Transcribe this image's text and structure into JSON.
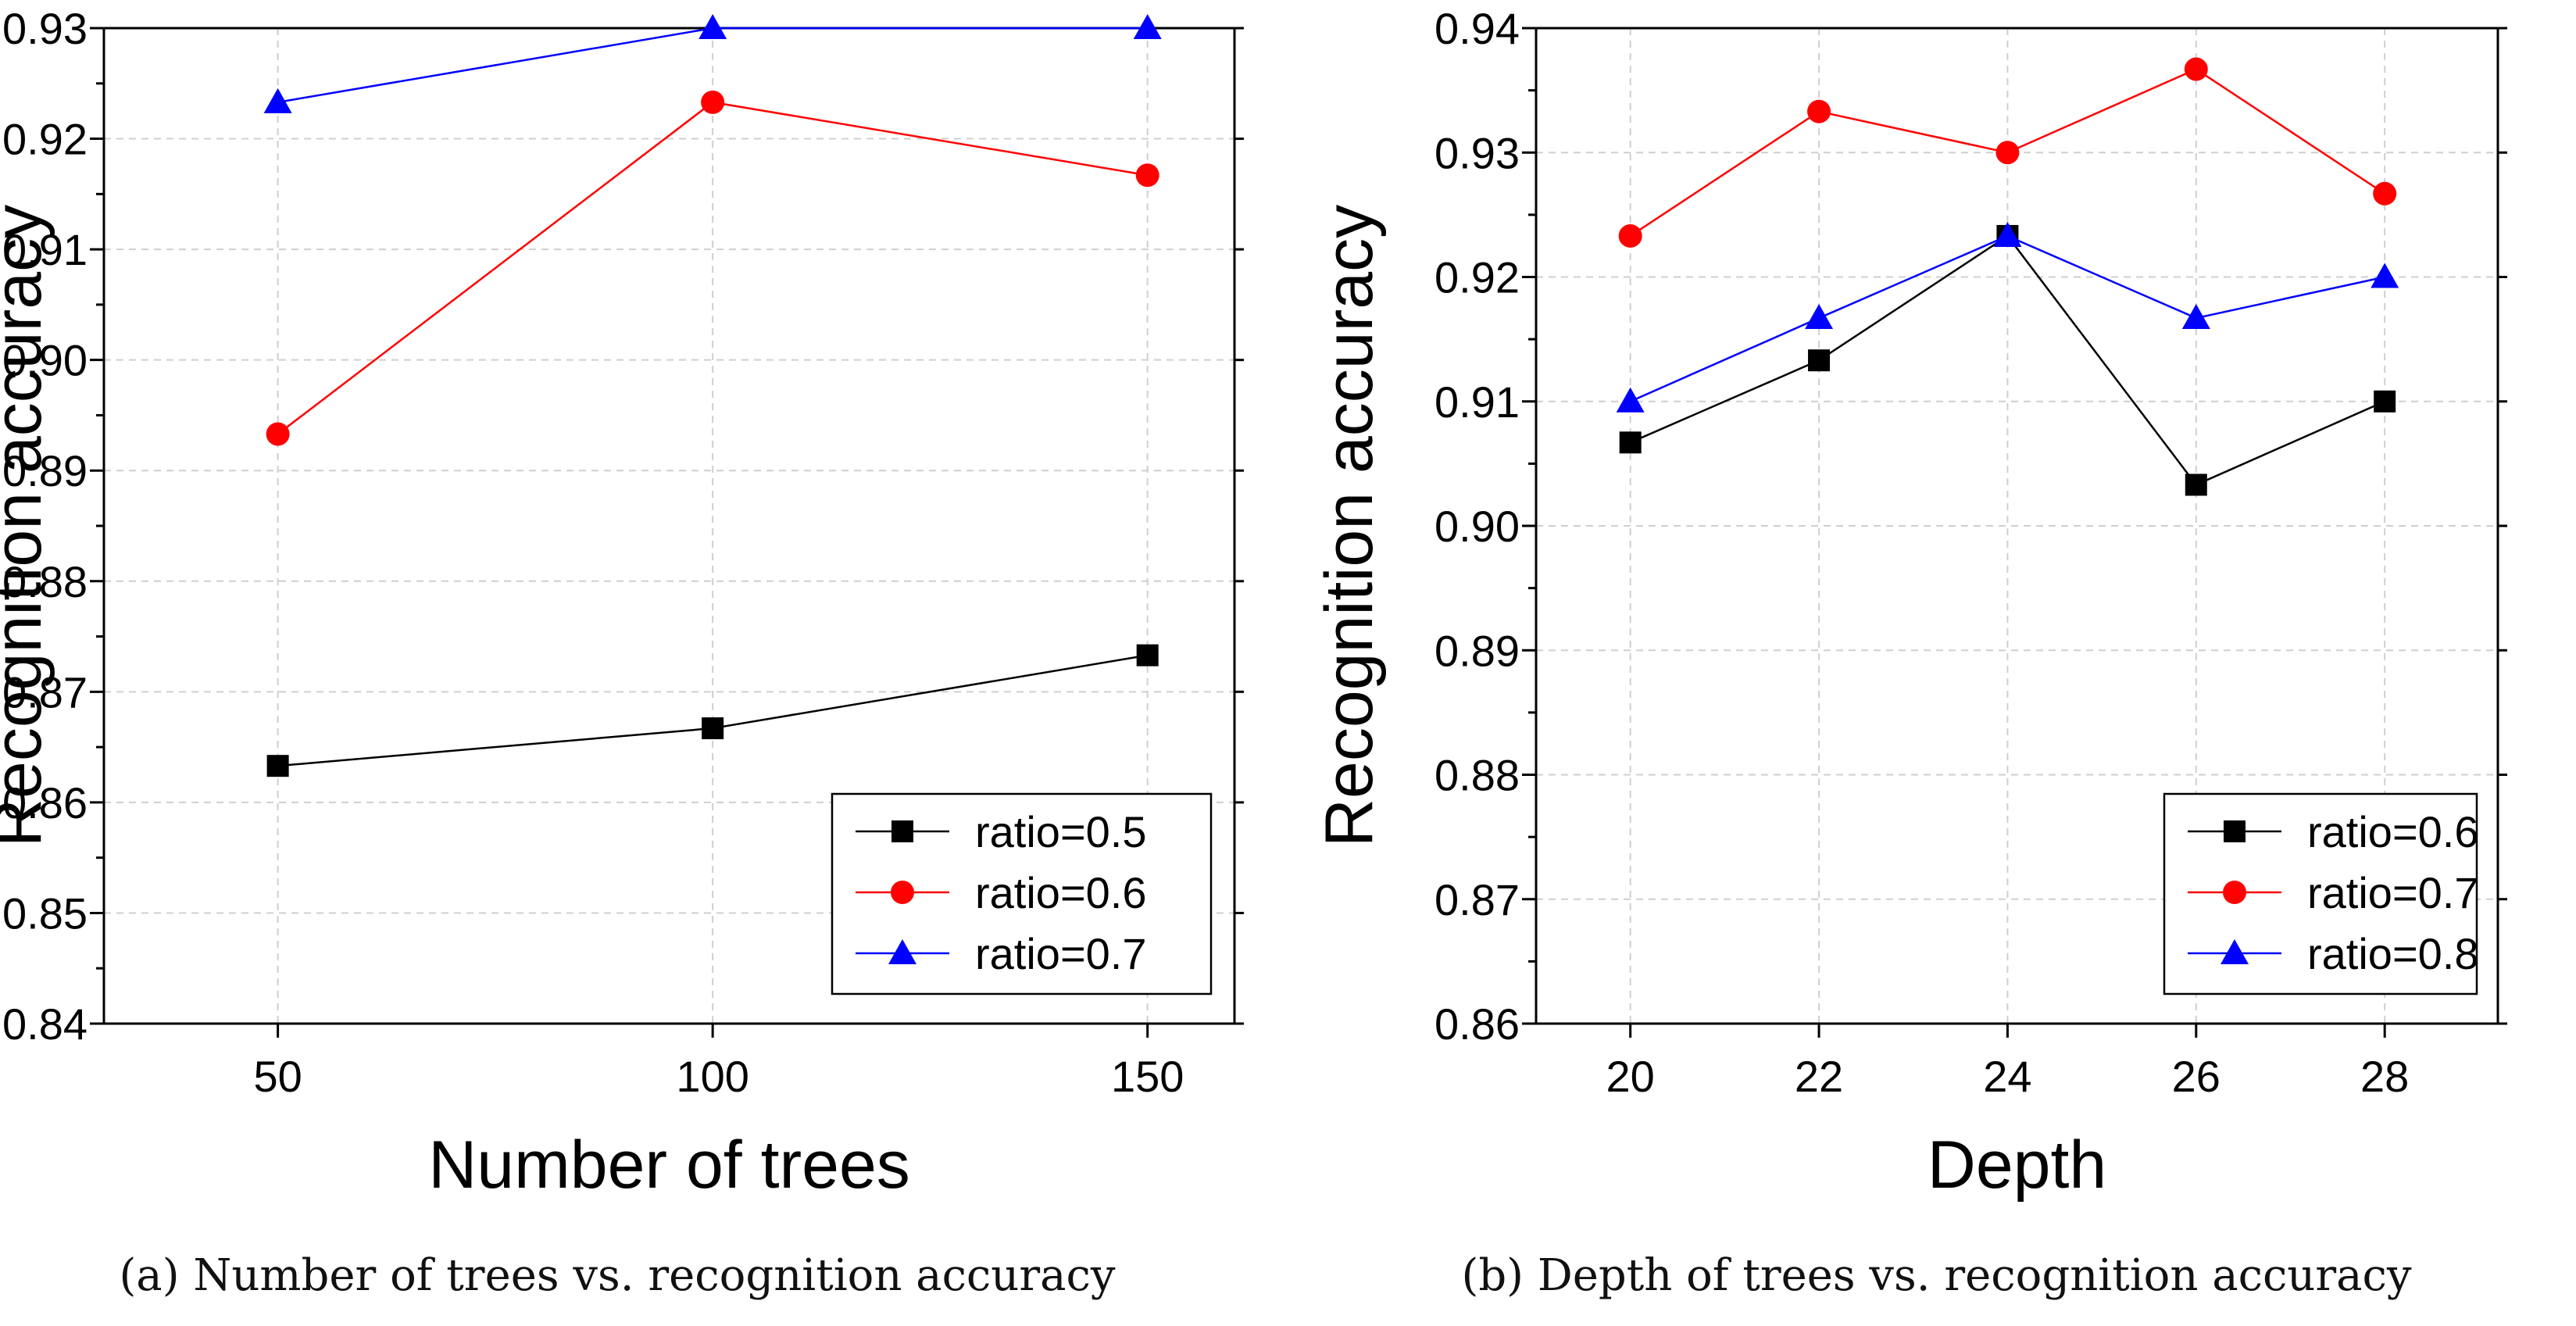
{
  "chart_data": [
    {
      "type": "line",
      "title": "",
      "caption": "(a)  Number of trees vs. recognition accuracy",
      "xlabel": "Number of trees",
      "ylabel": "Recognition accuracy",
      "x": [
        50,
        100,
        150
      ],
      "xticks": [
        50,
        100,
        150
      ],
      "xtick_labels": [
        "50",
        "100",
        "150"
      ],
      "xlim": [
        30,
        160
      ],
      "ylim": [
        0.84,
        0.93
      ],
      "yticks": [
        0.84,
        0.85,
        0.86,
        0.87,
        0.88,
        0.89,
        0.9,
        0.91,
        0.92,
        0.93
      ],
      "ytick_labels": [
        "0.84",
        "0.85",
        "0.86",
        "0.87",
        "0.88",
        "0.89",
        "0.90",
        "0.91",
        "0.92",
        "0.93"
      ],
      "grid": true,
      "legend_position": "bottom-right",
      "series": [
        {
          "name": "ratio=0.5",
          "color": "#000000",
          "marker": "square",
          "values": [
            0.8633,
            0.8667,
            0.8733
          ]
        },
        {
          "name": "ratio=0.6",
          "color": "#ff0000",
          "marker": "circle",
          "values": [
            0.8933,
            0.9233,
            0.9167
          ]
        },
        {
          "name": "ratio=0.7",
          "color": "#0000ff",
          "marker": "triangle",
          "values": [
            0.9233,
            0.93,
            0.93
          ]
        }
      ]
    },
    {
      "type": "line",
      "title": "",
      "caption": "(b)  Depth of trees vs. recognition accuracy",
      "xlabel": "Depth",
      "ylabel": "Recognition accuracy",
      "x": [
        20,
        22,
        24,
        26,
        28
      ],
      "xticks": [
        20,
        22,
        24,
        26,
        28
      ],
      "xtick_labels": [
        "20",
        "22",
        "24",
        "26",
        "28"
      ],
      "xlim": [
        19,
        29.2
      ],
      "ylim": [
        0.86,
        0.94
      ],
      "yticks": [
        0.86,
        0.87,
        0.88,
        0.89,
        0.9,
        0.91,
        0.92,
        0.93,
        0.94
      ],
      "ytick_labels": [
        "0.86",
        "0.87",
        "0.88",
        "0.89",
        "0.90",
        "0.91",
        "0.92",
        "0.93",
        "0.94"
      ],
      "grid": true,
      "legend_position": "bottom-right",
      "series": [
        {
          "name": "ratio=0.6",
          "color": "#000000",
          "marker": "square",
          "values": [
            0.9067,
            0.9133,
            0.9233,
            0.9033,
            0.91
          ]
        },
        {
          "name": "ratio=0.7",
          "color": "#ff0000",
          "marker": "circle",
          "values": [
            0.9233,
            0.9333,
            0.93,
            0.9367,
            0.9267
          ]
        },
        {
          "name": "ratio=0.8",
          "color": "#0000ff",
          "marker": "triangle",
          "values": [
            0.91,
            0.9167,
            0.9233,
            0.9167,
            0.92
          ]
        }
      ]
    }
  ]
}
